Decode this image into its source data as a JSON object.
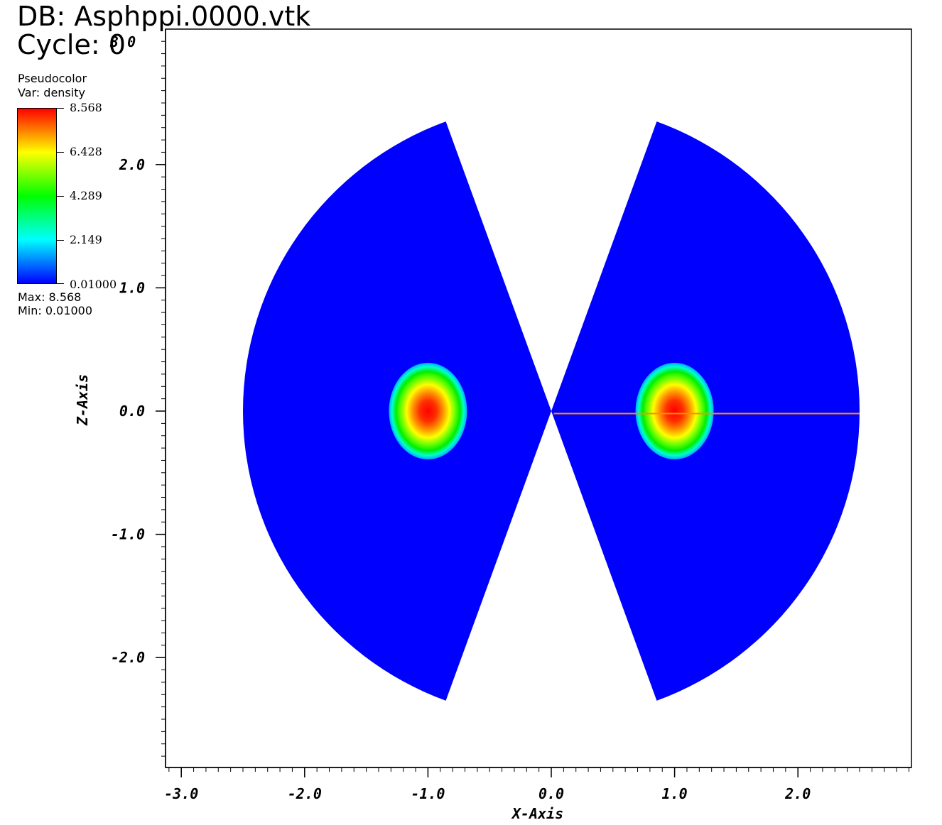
{
  "header": {
    "db_line": "DB: Asphppi.0000.vtk",
    "cycle_line": "Cycle: 0",
    "overlap_text": "3.0"
  },
  "legend": {
    "plot_type": "Pseudocolor",
    "var_line": "Var: density",
    "max_line": "Max:  8.568",
    "min_line": "Min:  0.01000",
    "labels": [
      "8.568",
      "6.428",
      "4.289",
      "2.149",
      "0.01000"
    ],
    "colors": [
      "#ff0000",
      "#ffff00",
      "#00ff00",
      "#00ffff",
      "#0000ff"
    ]
  },
  "chart_data": {
    "type": "heatmap",
    "title": "",
    "variable": "density",
    "colormap": "hot-to-cold (blue, cyan, green, yellow, red)",
    "value_range": [
      0.01,
      8.568
    ],
    "xlabel": "X-Axis",
    "ylabel": "Z-Axis",
    "xlim": [
      -3.1,
      2.9
    ],
    "ylim": [
      -2.9,
      3.1
    ],
    "x_ticks": [
      -3.0,
      -2.0,
      -1.0,
      0.0,
      1.0,
      2.0
    ],
    "x_tick_labels": [
      "-3.0",
      "-2.0",
      "-1.0",
      "0.0",
      "1.0",
      "2.0"
    ],
    "y_ticks": [
      2.0,
      1.0,
      0.0,
      -1.0,
      -2.0
    ],
    "y_tick_labels": [
      "2.0",
      "1.0",
      "0.0",
      "-1.0",
      "-2.0"
    ],
    "grid": false,
    "background_value": 0.01,
    "wedges": [
      {
        "side": "left",
        "center": [
          0,
          0
        ],
        "radius": 2.5,
        "angle_deg": [
          110,
          250
        ]
      },
      {
        "side": "right",
        "center": [
          0,
          0
        ],
        "radius": 2.5,
        "angle_deg": [
          -70,
          70
        ]
      }
    ],
    "peaks": [
      {
        "x": -1.0,
        "z": 0.0,
        "value": 8.568
      },
      {
        "x": 1.0,
        "z": 0.0,
        "value": 8.568
      }
    ],
    "line_segment": {
      "x": [
        0.02,
        2.5
      ],
      "z": [
        -0.02,
        -0.02
      ],
      "color": "#ff8c00"
    }
  }
}
